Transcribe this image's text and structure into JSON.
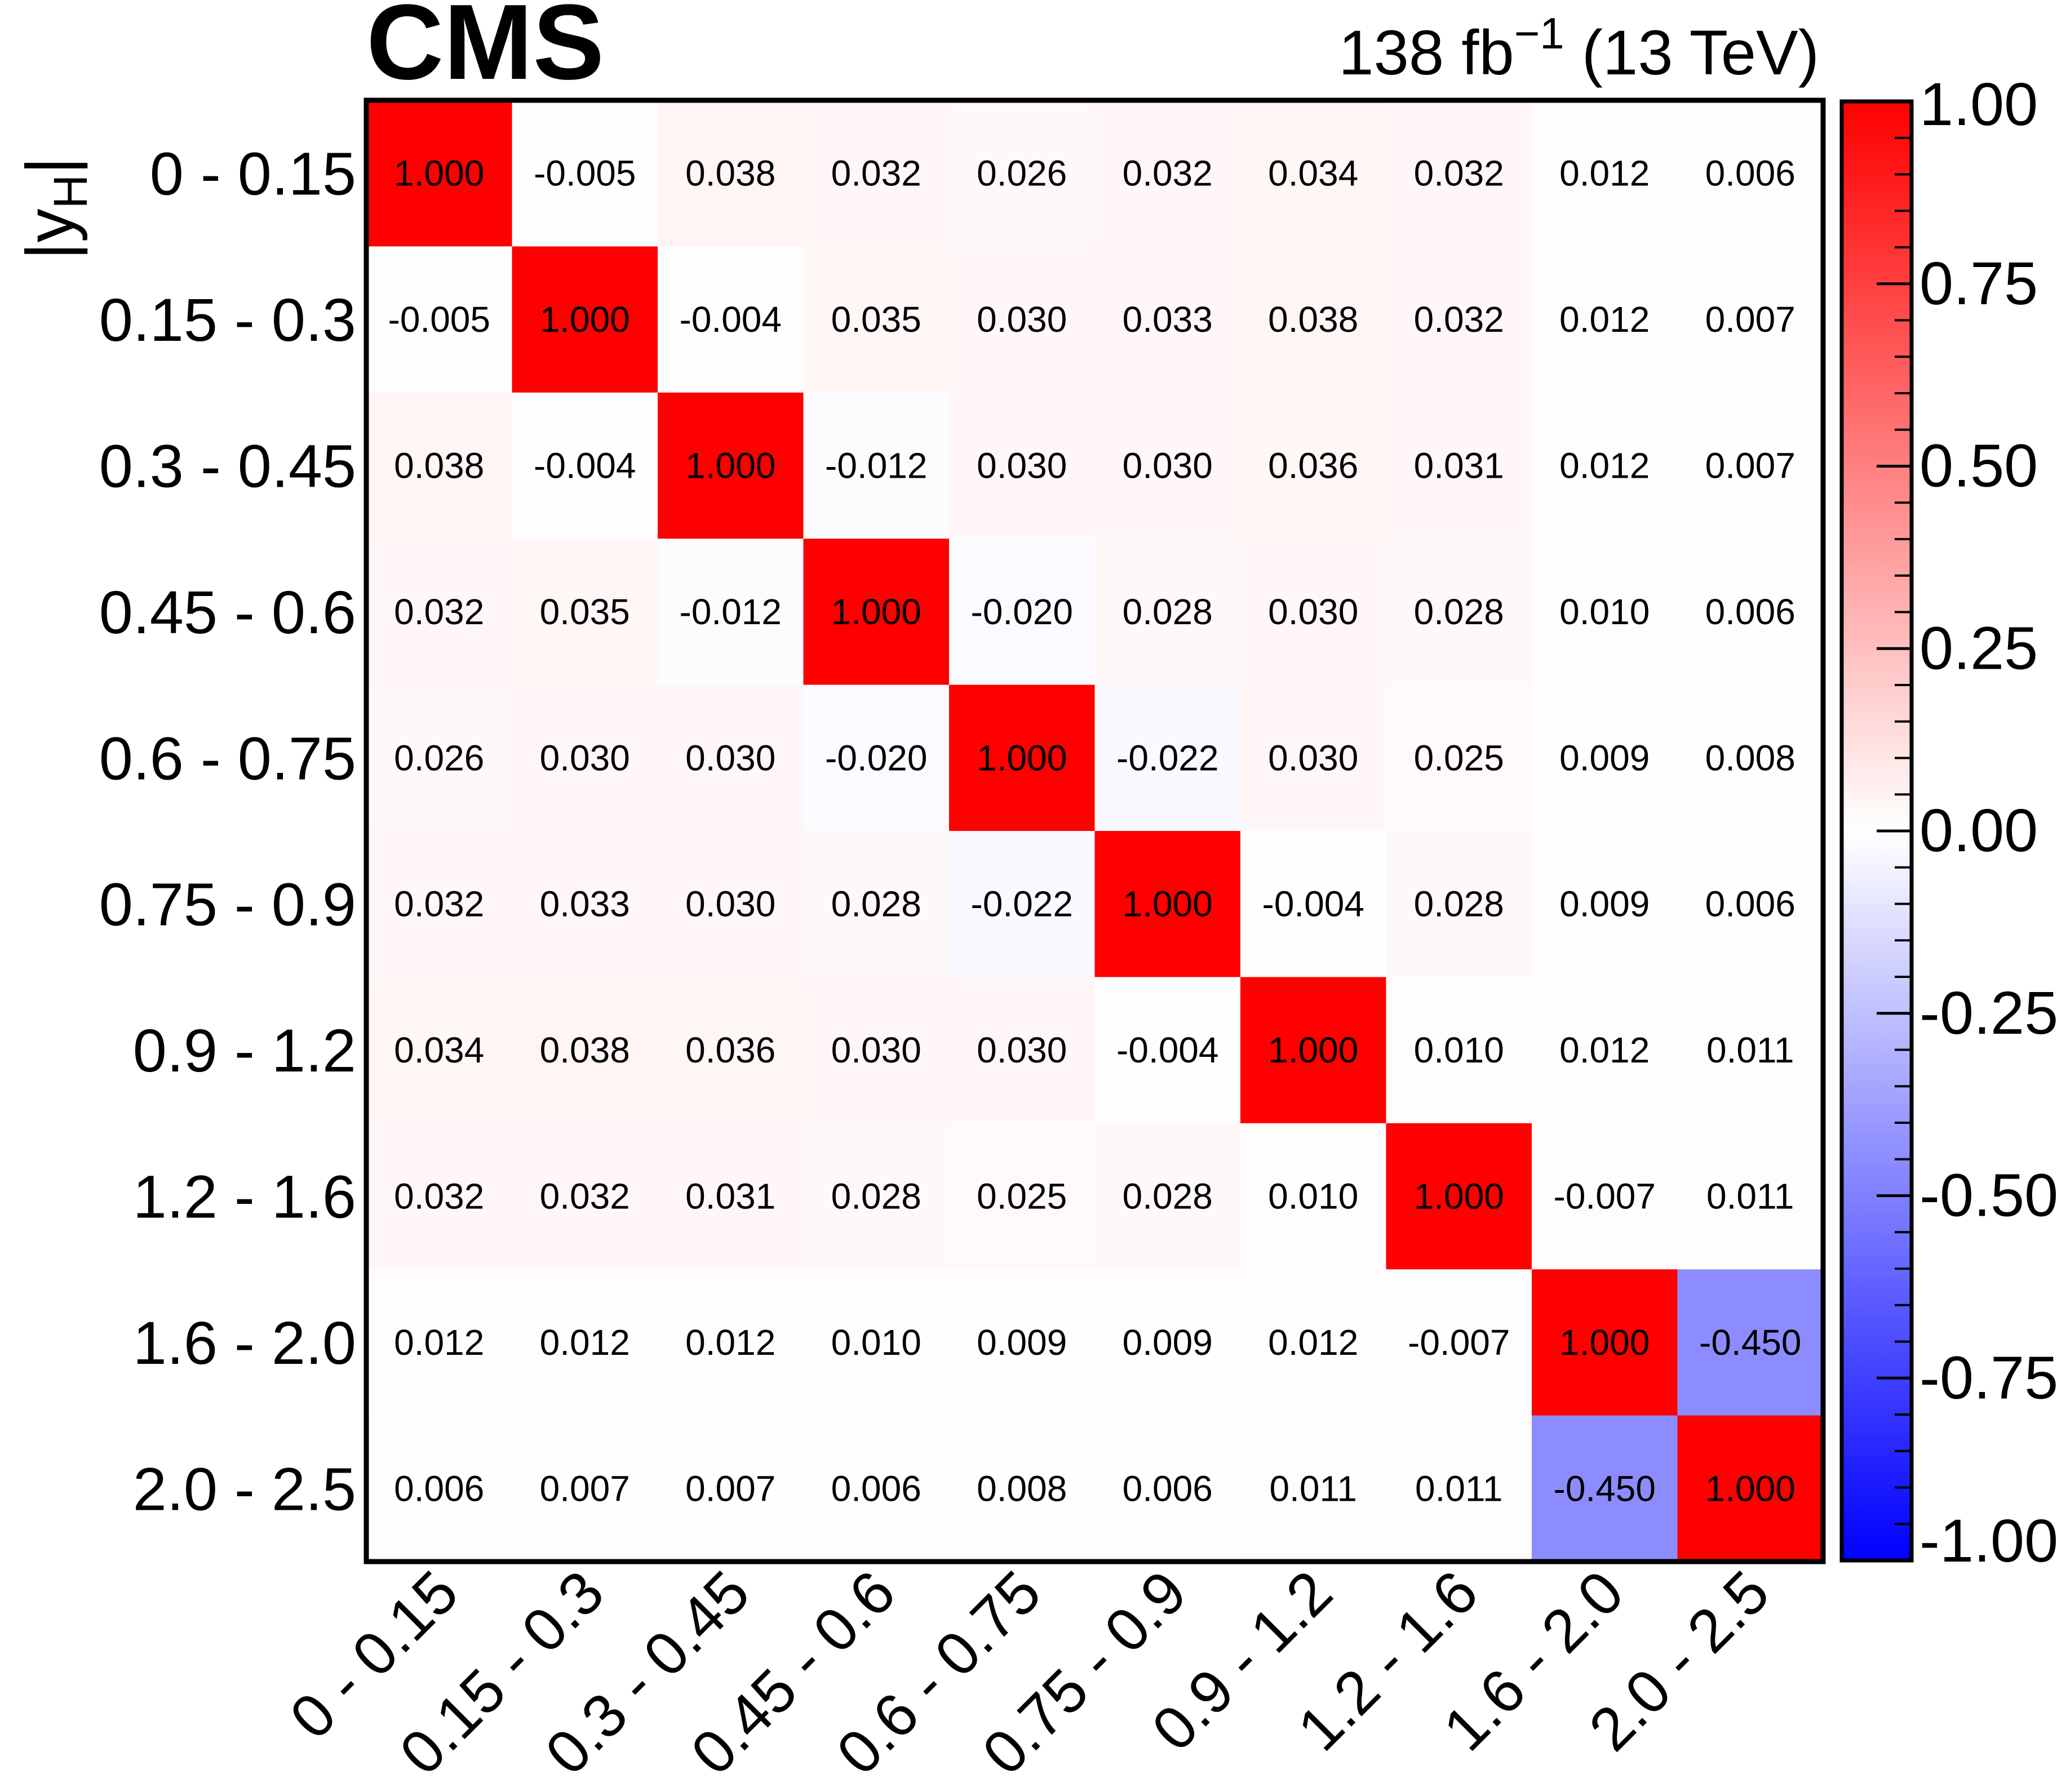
{
  "header": {
    "experiment": "CMS",
    "lumi_value": "138 fb",
    "lumi_exponent": "−1",
    "energy": " (13 TeV)"
  },
  "colors": {
    "positive": "#ff0000",
    "neutral": "#ffffff",
    "negative": "#0000ff",
    "frame": "#000000",
    "text": "#000000"
  },
  "chart_data": {
    "type": "heatmap",
    "title": "",
    "ylabel_main": "|y",
    "ylabel_sub": "H",
    "ylabel_end": "|",
    "xlabel": "",
    "categories": [
      "0 - 0.15",
      "0.15 - 0.3",
      "0.3 - 0.45",
      "0.45 - 0.6",
      "0.6 - 0.75",
      "0.75 - 0.9",
      "0.9 - 1.2",
      "1.2 - 1.6",
      "1.6 - 2.0",
      "2.0 - 2.5"
    ],
    "values": [
      [
        1.0,
        -0.005,
        0.038,
        0.032,
        0.026,
        0.032,
        0.034,
        0.032,
        0.012,
        0.006
      ],
      [
        -0.005,
        1.0,
        -0.004,
        0.035,
        0.03,
        0.033,
        0.038,
        0.032,
        0.012,
        0.007
      ],
      [
        0.038,
        -0.004,
        1.0,
        -0.012,
        0.03,
        0.03,
        0.036,
        0.031,
        0.012,
        0.007
      ],
      [
        0.032,
        0.035,
        -0.012,
        1.0,
        -0.02,
        0.028,
        0.03,
        0.028,
        0.01,
        0.006
      ],
      [
        0.026,
        0.03,
        0.03,
        -0.02,
        1.0,
        -0.022,
        0.03,
        0.025,
        0.009,
        0.008
      ],
      [
        0.032,
        0.033,
        0.03,
        0.028,
        -0.022,
        1.0,
        -0.004,
        0.028,
        0.009,
        0.006
      ],
      [
        0.034,
        0.038,
        0.036,
        0.03,
        0.03,
        -0.004,
        1.0,
        0.01,
        0.012,
        0.011
      ],
      [
        0.032,
        0.032,
        0.031,
        0.028,
        0.025,
        0.028,
        0.01,
        1.0,
        -0.007,
        0.011
      ],
      [
        0.012,
        0.012,
        0.012,
        0.01,
        0.009,
        0.009,
        0.012,
        -0.007,
        1.0,
        -0.45
      ],
      [
        0.006,
        0.007,
        0.007,
        0.006,
        0.008,
        0.006,
        0.011,
        0.011,
        -0.45,
        1.0
      ]
    ],
    "cell_labels": [
      [
        "1.000",
        "-0.005",
        "0.038",
        "0.032",
        "0.026",
        "0.032",
        "0.034",
        "0.032",
        "0.012",
        "0.006"
      ],
      [
        "-0.005",
        "1.000",
        "-0.004",
        "0.035",
        "0.030",
        "0.033",
        "0.038",
        "0.032",
        "0.012",
        "0.007"
      ],
      [
        "0.038",
        "-0.004",
        "1.000",
        "-0.012",
        "0.030",
        "0.030",
        "0.036",
        "0.031",
        "0.012",
        "0.007"
      ],
      [
        "0.032",
        "0.035",
        "-0.012",
        "1.000",
        "-0.020",
        "0.028",
        "0.030",
        "0.028",
        "0.010",
        "0.006"
      ],
      [
        "0.026",
        "0.030",
        "0.030",
        "-0.020",
        "1.000",
        "-0.022",
        "0.030",
        "0.025",
        "0.009",
        "0.008"
      ],
      [
        "0.032",
        "0.033",
        "0.030",
        "0.028",
        "-0.022",
        "1.000",
        "-0.004",
        "0.028",
        "0.009",
        "0.006"
      ],
      [
        "0.034",
        "0.038",
        "0.036",
        "0.030",
        "0.030",
        "-0.004",
        "1.000",
        "0.010",
        "0.012",
        "0.011"
      ],
      [
        "0.032",
        "0.032",
        "0.031",
        "0.028",
        "0.025",
        "0.028",
        "0.010",
        "1.000",
        "-0.007",
        "0.011"
      ],
      [
        "0.012",
        "0.012",
        "0.012",
        "0.010",
        "0.009",
        "0.009",
        "0.012",
        "-0.007",
        "1.000",
        "-0.450"
      ],
      [
        "0.006",
        "0.007",
        "0.007",
        "0.006",
        "0.008",
        "0.006",
        "0.011",
        "0.011",
        "-0.450",
        "1.000"
      ]
    ],
    "zlim": [
      -1.0,
      1.0
    ],
    "colorbar_ticks": [
      1.0,
      0.75,
      0.5,
      0.25,
      0.0,
      -0.25,
      -0.5,
      -0.75,
      -1.0
    ],
    "colorbar_tick_labels": [
      "1.00",
      "0.75",
      "0.50",
      "0.25",
      "0.00",
      "-0.25",
      "-0.50",
      "-0.75",
      "-1.00"
    ],
    "colorbar_minor_per_major": 5,
    "grid": false,
    "legend": "colorbar-right"
  }
}
